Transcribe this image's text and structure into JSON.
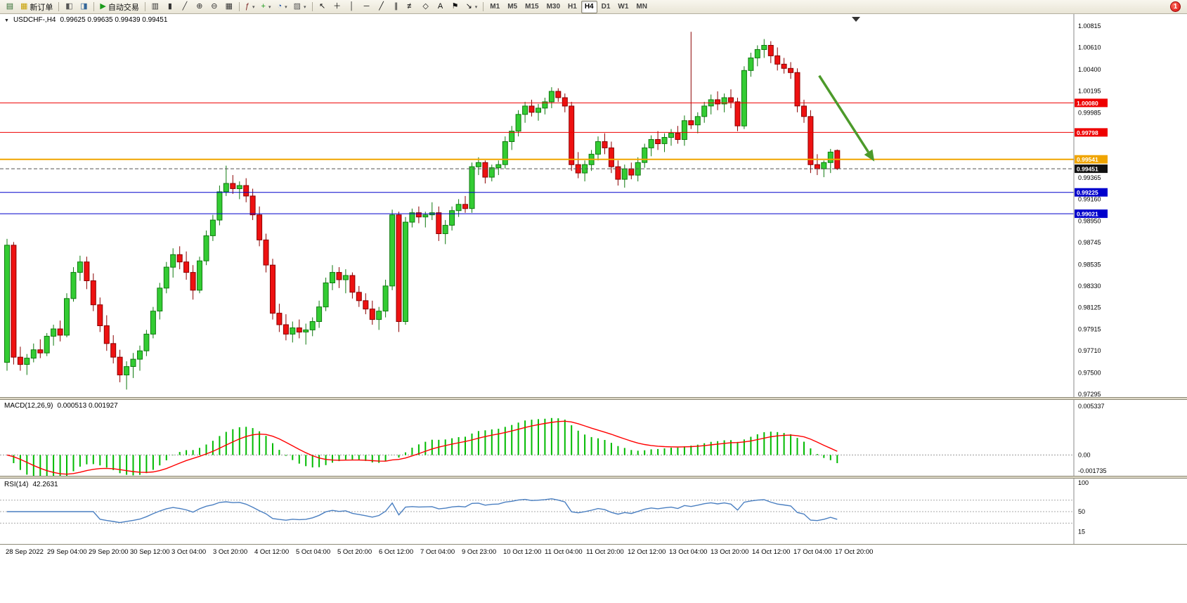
{
  "toolbar": {
    "groups": [
      {
        "items": [
          {
            "name": "new-chart",
            "glyph": "▤",
            "color": "#2d6a2d"
          },
          {
            "name": "new-order",
            "glyph": "▦",
            "color": "#c8a000",
            "label": "新订单"
          }
        ]
      },
      {
        "items": [
          {
            "name": "market-watch",
            "glyph": "◧",
            "color": "#555555"
          },
          {
            "name": "data-window",
            "glyph": "◨",
            "color": "#336699"
          }
        ]
      },
      {
        "items": [
          {
            "name": "auto-trading",
            "glyph": "▶",
            "color": "#1a9a1a",
            "label": "自动交易"
          }
        ]
      },
      {
        "items": [
          {
            "name": "chart-bars",
            "glyph": "▥",
            "color": "#333333"
          },
          {
            "name": "chart-candles",
            "glyph": "▮",
            "color": "#333333"
          },
          {
            "name": "chart-line",
            "glyph": "╱",
            "color": "#333333"
          },
          {
            "name": "zoom-in",
            "glyph": "⊕",
            "color": "#333333"
          },
          {
            "name": "zoom-out",
            "glyph": "⊖",
            "color": "#333333"
          },
          {
            "name": "tile-windows",
            "glyph": "▦",
            "color": "#333333"
          }
        ]
      },
      {
        "items": [
          {
            "name": "indicators",
            "glyph": "ƒ",
            "color": "#7a1f1f",
            "dropdown": true
          },
          {
            "name": "add-indicator",
            "glyph": "+",
            "color": "#1a9a1a",
            "dropdown": true
          },
          {
            "name": "periods",
            "glyph": "◔",
            "color": "#2255aa",
            "dropdown": true
          },
          {
            "name": "templates",
            "glyph": "▨",
            "color": "#555555",
            "dropdown": true
          }
        ]
      },
      {
        "items": [
          {
            "name": "cursor",
            "glyph": "↖",
            "color": "#111111"
          },
          {
            "name": "crosshair",
            "glyph": "＋",
            "color": "#111111"
          },
          {
            "name": "vertical-line",
            "glyph": "│",
            "color": "#111111"
          },
          {
            "name": "horizontal-line",
            "glyph": "─",
            "color": "#111111"
          },
          {
            "name": "trendline",
            "glyph": "╱",
            "color": "#111111"
          },
          {
            "name": "equidistant-channel",
            "glyph": "∥",
            "color": "#111111"
          },
          {
            "name": "fibonacci",
            "glyph": "≢",
            "color": "#111111"
          },
          {
            "name": "shapes",
            "glyph": "◇",
            "color": "#111111"
          },
          {
            "name": "text",
            "glyph": "A",
            "color": "#111111"
          },
          {
            "name": "text-label",
            "glyph": "⚑",
            "color": "#111111"
          },
          {
            "name": "arrows",
            "glyph": "↘",
            "color": "#111111",
            "dropdown": true
          }
        ]
      }
    ],
    "timeframes": [
      {
        "label": "M1"
      },
      {
        "label": "M5"
      },
      {
        "label": "M15"
      },
      {
        "label": "M30"
      },
      {
        "label": "H1"
      },
      {
        "label": "H4",
        "active": true
      },
      {
        "label": "D1"
      },
      {
        "label": "W1"
      },
      {
        "label": "MN"
      }
    ],
    "notification_count": "1"
  },
  "chart_header": {
    "collapse_icon": "▼",
    "symbol_period": "USDCHF-,H4",
    "ohlc": "0.99625 0.99635 0.99439 0.99451"
  },
  "price_axis": {
    "labels": [
      "1.00815",
      "1.00610",
      "1.00400",
      "1.00195",
      "0.99985",
      "0.99365",
      "0.99160",
      "0.98950",
      "0.98745",
      "0.98535",
      "0.98330",
      "0.98125",
      "0.97915",
      "0.97710",
      "0.97500",
      "0.97295"
    ]
  },
  "time_axis": {
    "labels": [
      "28 Sep 2022",
      "29 Sep 04:00",
      "29 Sep 20:00",
      "30 Sep 12:00",
      "3 Oct 04:00",
      "3 Oct 20:00",
      "4 Oct 12:00",
      "5 Oct 04:00",
      "5 Oct 20:00",
      "6 Oct 12:00",
      "7 Oct 04:00",
      "9 Oct 23:00",
      "10 Oct 12:00",
      "11 Oct 04:00",
      "11 Oct 20:00",
      "12 Oct 12:00",
      "13 Oct 04:00",
      "13 Oct 20:00",
      "14 Oct 12:00",
      "17 Oct 04:00",
      "17 Oct 20:00"
    ]
  },
  "macd_panel": {
    "title": "MACD(12,26,9)",
    "values": "0.000513 0.001927",
    "axis_max": "0.005337",
    "axis_zero": "0.00",
    "axis_min": "-0.001735"
  },
  "rsi_panel": {
    "title": "RSI(14)",
    "value": "42.2631",
    "axis_labels": [
      "100",
      "50",
      "15"
    ],
    "levels": [
      70,
      50,
      30
    ]
  },
  "chart_data": {
    "type": "candlestick",
    "symbol": "USDCHF",
    "period": "H4",
    "price_range": {
      "max": 1.00815,
      "min": 0.97295
    },
    "colors": {
      "bull": "#33cc33",
      "bull_border": "#0f7a0f",
      "bear": "#ee1111",
      "bear_border": "#8b0000",
      "macd_hist": "#00bb00",
      "macd_signal": "#ff0000",
      "rsi_line": "#4a7fc1"
    },
    "levels": [
      {
        "price": 1.0008,
        "label": "1.00080",
        "color": "#ee0000"
      },
      {
        "price": 0.99798,
        "label": "0.99798",
        "color": "#ee0000"
      },
      {
        "price": 0.99541,
        "label": "0.99541",
        "color": "#f0a500",
        "width": 2
      },
      {
        "price": 0.99451,
        "label": "0.99451",
        "color": "#555555",
        "tag_color": "#111111",
        "dash": true
      },
      {
        "price": 0.99225,
        "label": "0.99225",
        "color": "#0000cc"
      },
      {
        "price": 0.99021,
        "label": "0.99021",
        "color": "#0000cc"
      }
    ],
    "trend_arrow": {
      "from_index": 122.3,
      "from_price": 1.0034,
      "to_index": 130.6,
      "to_price": 0.9952,
      "color": "#4c9a2a"
    },
    "candles": [
      [
        0.976,
        0.9878,
        0.9752,
        0.9872
      ],
      [
        0.9872,
        0.9875,
        0.9758,
        0.9765
      ],
      [
        0.9765,
        0.9775,
        0.9752,
        0.9758
      ],
      [
        0.9758,
        0.9768,
        0.9748,
        0.9764
      ],
      [
        0.9764,
        0.9778,
        0.976,
        0.9772
      ],
      [
        0.9772,
        0.9782,
        0.9764,
        0.9769
      ],
      [
        0.9769,
        0.9788,
        0.9766,
        0.9785
      ],
      [
        0.9785,
        0.9796,
        0.9776,
        0.9792
      ],
      [
        0.9792,
        0.98,
        0.978,
        0.9786
      ],
      [
        0.9786,
        0.9826,
        0.9784,
        0.9821
      ],
      [
        0.9821,
        0.9851,
        0.9818,
        0.9846
      ],
      [
        0.9846,
        0.9862,
        0.9838,
        0.9856
      ],
      [
        0.9856,
        0.9861,
        0.983,
        0.9838
      ],
      [
        0.9838,
        0.9845,
        0.9809,
        0.9815
      ],
      [
        0.9815,
        0.9822,
        0.9789,
        0.9795
      ],
      [
        0.9795,
        0.9805,
        0.9771,
        0.9778
      ],
      [
        0.9778,
        0.9786,
        0.9759,
        0.9765
      ],
      [
        0.9765,
        0.9772,
        0.9741,
        0.9748
      ],
      [
        0.9748,
        0.9761,
        0.9734,
        0.9756
      ],
      [
        0.9756,
        0.9769,
        0.9745,
        0.9763
      ],
      [
        0.9763,
        0.9776,
        0.9752,
        0.9771
      ],
      [
        0.9771,
        0.9791,
        0.9766,
        0.9787
      ],
      [
        0.9787,
        0.9813,
        0.9783,
        0.9809
      ],
      [
        0.9809,
        0.9836,
        0.9801,
        0.9831
      ],
      [
        0.9831,
        0.9856,
        0.9826,
        0.9851
      ],
      [
        0.9851,
        0.9869,
        0.9841,
        0.9863
      ],
      [
        0.9863,
        0.9871,
        0.9849,
        0.9856
      ],
      [
        0.9856,
        0.9866,
        0.9839,
        0.9846
      ],
      [
        0.9846,
        0.9853,
        0.982,
        0.9829
      ],
      [
        0.9829,
        0.9861,
        0.9826,
        0.9857
      ],
      [
        0.9857,
        0.9886,
        0.9853,
        0.9881
      ],
      [
        0.9881,
        0.9901,
        0.9876,
        0.9896
      ],
      [
        0.9896,
        0.9929,
        0.9891,
        0.9923
      ],
      [
        0.9923,
        0.9948,
        0.9919,
        0.9931
      ],
      [
        0.9931,
        0.9939,
        0.9921,
        0.9926
      ],
      [
        0.9926,
        0.9933,
        0.9916,
        0.9929
      ],
      [
        0.9929,
        0.9936,
        0.9913,
        0.9919
      ],
      [
        0.9919,
        0.9926,
        0.9896,
        0.9901
      ],
      [
        0.9901,
        0.9909,
        0.9871,
        0.9877
      ],
      [
        0.9877,
        0.9883,
        0.9846,
        0.9853
      ],
      [
        0.9853,
        0.9859,
        0.9801,
        0.9807
      ],
      [
        0.9807,
        0.9816,
        0.9789,
        0.9796
      ],
      [
        0.9796,
        0.9806,
        0.9781,
        0.9787
      ],
      [
        0.9787,
        0.9799,
        0.9779,
        0.9793
      ],
      [
        0.9793,
        0.9801,
        0.9783,
        0.9789
      ],
      [
        0.9789,
        0.9797,
        0.9777,
        0.9791
      ],
      [
        0.9791,
        0.9803,
        0.9785,
        0.9799
      ],
      [
        0.9799,
        0.9819,
        0.9793,
        0.9813
      ],
      [
        0.9813,
        0.9841,
        0.9809,
        0.9836
      ],
      [
        0.9836,
        0.9853,
        0.9829,
        0.9846
      ],
      [
        0.9846,
        0.9851,
        0.9831,
        0.9839
      ],
      [
        0.9839,
        0.9849,
        0.9826,
        0.9843
      ],
      [
        0.9843,
        0.9846,
        0.9821,
        0.9827
      ],
      [
        0.9827,
        0.9833,
        0.9813,
        0.9819
      ],
      [
        0.9819,
        0.9826,
        0.9806,
        0.9811
      ],
      [
        0.9811,
        0.9819,
        0.9796,
        0.9801
      ],
      [
        0.9801,
        0.9813,
        0.9791,
        0.9809
      ],
      [
        0.9809,
        0.9839,
        0.9803,
        0.9833
      ],
      [
        0.9833,
        0.9906,
        0.9829,
        0.9901
      ],
      [
        0.9901,
        0.9904,
        0.9789,
        0.9799
      ],
      [
        0.9799,
        0.9899,
        0.9796,
        0.9894
      ],
      [
        0.9894,
        0.9907,
        0.9889,
        0.9903
      ],
      [
        0.9903,
        0.9909,
        0.9893,
        0.9899
      ],
      [
        0.9899,
        0.9904,
        0.9889,
        0.9901
      ],
      [
        0.9901,
        0.9913,
        0.9896,
        0.9903
      ],
      [
        0.9903,
        0.9909,
        0.9876,
        0.9883
      ],
      [
        0.9883,
        0.9896,
        0.9873,
        0.9891
      ],
      [
        0.9891,
        0.9909,
        0.9886,
        0.9905
      ],
      [
        0.9905,
        0.9916,
        0.9899,
        0.9911
      ],
      [
        0.9911,
        0.9919,
        0.9903,
        0.9907
      ],
      [
        0.9907,
        0.9951,
        0.9903,
        0.9947
      ],
      [
        0.9947,
        0.9956,
        0.9939,
        0.9951
      ],
      [
        0.9951,
        0.9953,
        0.9931,
        0.9937
      ],
      [
        0.9937,
        0.9949,
        0.9933,
        0.9946
      ],
      [
        0.9946,
        0.9953,
        0.9939,
        0.9949
      ],
      [
        0.9949,
        0.9976,
        0.9945,
        0.9971
      ],
      [
        0.9971,
        0.9986,
        0.9963,
        0.9981
      ],
      [
        0.9981,
        1.0001,
        0.9976,
        0.9997
      ],
      [
        0.9997,
        1.0009,
        0.9989,
        1.0005
      ],
      [
        1.0005,
        1.0011,
        0.9995,
        0.9999
      ],
      [
        0.9999,
        1.0007,
        0.9991,
        1.0003
      ],
      [
        1.0003,
        1.0013,
        0.9997,
        1.0009
      ],
      [
        1.0009,
        1.0023,
        1.0003,
        1.0019
      ],
      [
        1.0019,
        1.0022,
        1.0009,
        1.0013
      ],
      [
        1.0013,
        1.0017,
        0.9999,
        1.0005
      ],
      [
        1.0005,
        1.0009,
        0.9943,
        0.9949
      ],
      [
        0.9949,
        0.9961,
        0.9936,
        0.9941
      ],
      [
        0.9941,
        0.9953,
        0.9933,
        0.9949
      ],
      [
        0.9949,
        0.9963,
        0.9943,
        0.9959
      ],
      [
        0.9959,
        0.9976,
        0.9953,
        0.9971
      ],
      [
        0.9971,
        0.9979,
        0.9959,
        0.9965
      ],
      [
        0.9965,
        0.9971,
        0.9941,
        0.9947
      ],
      [
        0.9947,
        0.9953,
        0.9929,
        0.9935
      ],
      [
        0.9935,
        0.9949,
        0.9927,
        0.9945
      ],
      [
        0.9945,
        0.9951,
        0.9935,
        0.9939
      ],
      [
        0.9939,
        0.9956,
        0.9933,
        0.9951
      ],
      [
        0.9951,
        0.9969,
        0.9946,
        0.9965
      ],
      [
        0.9965,
        0.9977,
        0.9957,
        0.9973
      ],
      [
        0.9973,
        0.9981,
        0.9963,
        0.9969
      ],
      [
        0.9969,
        0.9979,
        0.9961,
        0.9975
      ],
      [
        0.9975,
        0.9983,
        0.9967,
        0.9979
      ],
      [
        0.9979,
        0.9986,
        0.9969,
        0.9973
      ],
      [
        0.9973,
        0.9996,
        0.9967,
        0.9991
      ],
      [
        0.9991,
        1.0076,
        0.9983,
        0.9987
      ],
      [
        0.9987,
        0.9999,
        0.9979,
        0.9995
      ],
      [
        0.9995,
        1.0009,
        0.9989,
        1.0005
      ],
      [
        1.0005,
        1.0016,
        0.9997,
        1.0011
      ],
      [
        1.0011,
        1.0019,
        1.0001,
        1.0007
      ],
      [
        1.0007,
        1.0017,
        0.9999,
        1.0013
      ],
      [
        1.0013,
        1.0021,
        1.0003,
        1.0009
      ],
      [
        1.0009,
        1.0013,
        0.9981,
        0.9986
      ],
      [
        0.9986,
        1.0043,
        0.9983,
        1.0039
      ],
      [
        1.0039,
        1.0056,
        1.0033,
        1.0051
      ],
      [
        1.0051,
        1.0063,
        1.0043,
        1.0059
      ],
      [
        1.0059,
        1.0069,
        1.0051,
        1.0063
      ],
      [
        1.0063,
        1.0067,
        1.0046,
        1.0053
      ],
      [
        1.0053,
        1.0061,
        1.0039,
        1.0045
      ],
      [
        1.0045,
        1.0051,
        1.0036,
        1.0041
      ],
      [
        1.0041,
        1.0047,
        1.0031,
        1.0037
      ],
      [
        1.0037,
        1.0041,
        0.9999,
        1.0005
      ],
      [
        1.0005,
        1.0011,
        0.9989,
        0.9995
      ],
      [
        0.9995,
        1.0001,
        0.9941,
        0.9949
      ],
      [
        0.9949,
        0.9959,
        0.9939,
        0.9945
      ],
      [
        0.9945,
        0.9953,
        0.9937,
        0.9951
      ],
      [
        0.9951,
        0.9964,
        0.9941,
        0.9961
      ],
      [
        0.99625,
        0.99635,
        0.99439,
        0.99451
      ]
    ]
  }
}
